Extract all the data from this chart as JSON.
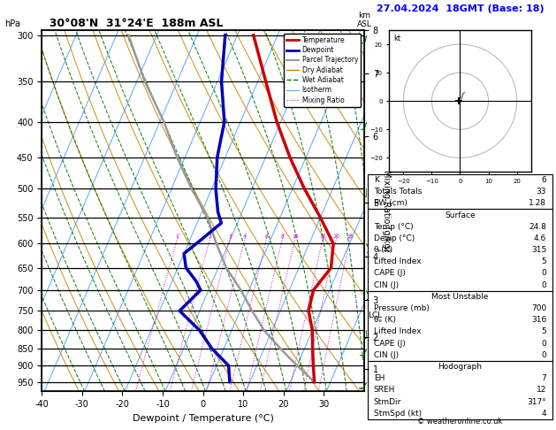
{
  "title_left": "30°08'N  31°24'E  188m ASL",
  "title_right": "27.04.2024  18GMT (Base: 18)",
  "xlabel": "Dewpoint / Temperature (°C)",
  "pmin": 295,
  "pmax": 980,
  "skew": 32,
  "xlim": [
    -40,
    40
  ],
  "temp_ticks": [
    -40,
    -30,
    -20,
    -10,
    0,
    10,
    20,
    30
  ],
  "pressure_levels": [
    300,
    350,
    400,
    450,
    500,
    550,
    600,
    650,
    700,
    750,
    800,
    850,
    900,
    950
  ],
  "km_pressures": [
    905,
    810,
    710,
    610,
    505,
    400,
    320,
    275
  ],
  "km_labels": [
    "1",
    "2",
    "3",
    "4",
    "5",
    "6",
    "7",
    "8"
  ],
  "lcl_p": 750,
  "temp_p": [
    300,
    350,
    400,
    450,
    500,
    550,
    600,
    650,
    700,
    750,
    800,
    850,
    900,
    950
  ],
  "temp_t": [
    -26,
    -18,
    -11,
    -4,
    3,
    10,
    16,
    18,
    16,
    17,
    20,
    22,
    24,
    26
  ],
  "dewp_p": [
    300,
    350,
    400,
    450,
    500,
    540,
    560,
    590,
    620,
    650,
    680,
    700,
    750,
    800,
    850,
    900,
    950
  ],
  "dewp_t": [
    -33,
    -29,
    -24,
    -22,
    -19,
    -16,
    -14,
    -17,
    -20,
    -18,
    -14,
    -12,
    -15,
    -8,
    -3,
    3,
    5
  ],
  "parcel_p": [
    950,
    900,
    850,
    800,
    750,
    700,
    650,
    600,
    550,
    500,
    450,
    400,
    350,
    300
  ],
  "parcel_t": [
    26,
    20,
    14,
    8,
    3,
    -2,
    -8,
    -13,
    -18,
    -25,
    -32,
    -39,
    -48,
    -57
  ],
  "mixing_ratios": [
    1,
    2,
    3,
    4,
    6,
    8,
    10,
    16,
    20,
    25
  ],
  "wind_p": [
    300,
    400,
    500,
    600,
    700,
    800,
    850,
    950
  ],
  "wind_u": [
    1,
    1,
    0,
    -1,
    -1,
    0,
    1,
    2
  ],
  "wind_v": [
    4,
    3,
    3,
    2,
    2,
    2,
    2,
    3
  ],
  "hodo_u": [
    1.5,
    1.0,
    0.5,
    0.0,
    -0.5
  ],
  "hodo_v": [
    3.0,
    2.5,
    1.0,
    0.5,
    0.0
  ],
  "K": 6,
  "TT": 33,
  "PW": 1.28,
  "surf_temp": 24.8,
  "surf_dewp": 4.6,
  "surf_thetae": 315,
  "surf_li": 5,
  "surf_cape": 0,
  "surf_cin": 0,
  "mu_pres": 700,
  "mu_thetae": 316,
  "mu_li": 5,
  "mu_cape": 0,
  "mu_cin": 0,
  "EH": 7,
  "SREH": 12,
  "StmDir": 317,
  "StmSpd": 4,
  "c_temp": "#cc0000",
  "c_dewp": "#0000bb",
  "c_parcel": "#999999",
  "c_dry": "#cc8800",
  "c_wet": "#007700",
  "c_iso": "#55aaff",
  "c_mix": "#cc00cc",
  "c_wind": "#228822",
  "legend_labels": [
    "Temperature",
    "Dewpoint",
    "Parcel Trajectory",
    "Dry Adiabat",
    "Wet Adiabat",
    "Isotherm",
    "Mixing Ratio"
  ]
}
